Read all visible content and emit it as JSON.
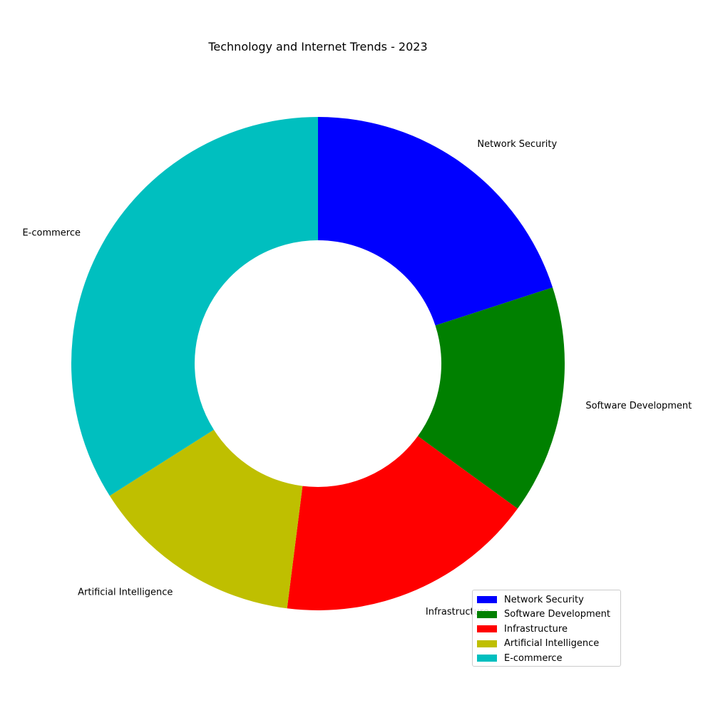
{
  "chart_data": {
    "type": "pie",
    "title": "Technology and Internet Trends - 2023",
    "categories": [
      "Network Security",
      "Software Development",
      "Infrastructure",
      "Artificial Intelligence",
      "E-commerce"
    ],
    "values": [
      20,
      15,
      17,
      14,
      34
    ],
    "colors": [
      "#0000ff",
      "#008000",
      "#ff0000",
      "#bfbf00",
      "#00bfbf"
    ],
    "donut": true,
    "start_angle": "top",
    "direction": "clockwise",
    "legend": {
      "placement": "lower-right",
      "entries": [
        "Network Security",
        "Software Development",
        "Infrastructure",
        "Artificial Intelligence",
        "E-commerce"
      ]
    }
  }
}
